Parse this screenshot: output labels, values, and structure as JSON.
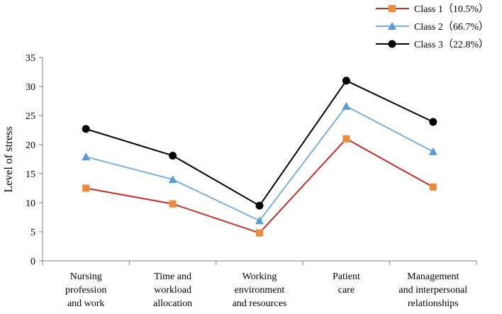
{
  "chart_data": {
    "type": "line",
    "title": "",
    "xlabel": "",
    "ylabel": "Level of stress",
    "ylim": [
      0,
      35
    ],
    "yticks": [
      0,
      5,
      10,
      15,
      20,
      25,
      30,
      35
    ],
    "grid": false,
    "legend_position": "top-right",
    "categories": [
      [
        "Nursing",
        "profession",
        "and work"
      ],
      [
        "Time and",
        "workload",
        "allocation"
      ],
      [
        "Working",
        "environment",
        "and resources"
      ],
      [
        "Patient",
        "care"
      ],
      [
        "Management",
        "and interpersonal",
        "relationships"
      ]
    ],
    "series": [
      {
        "name": "Class 1（10.5%）",
        "marker": "square",
        "color": "#c0312b",
        "marker_color": "#ed8a3b",
        "values": [
          12.5,
          9.8,
          4.8,
          21.0,
          12.7
        ]
      },
      {
        "name": "Class 2（66.7%）",
        "marker": "triangle",
        "color": "#7bb0db",
        "marker_color": "#5b9bd5",
        "values": [
          17.9,
          14.0,
          6.9,
          26.6,
          18.8
        ]
      },
      {
        "name": "Class 3（22.8%）",
        "marker": "circle",
        "color": "#000000",
        "marker_color": "#000000",
        "values": [
          22.7,
          18.1,
          9.5,
          31.0,
          23.9
        ]
      }
    ]
  }
}
